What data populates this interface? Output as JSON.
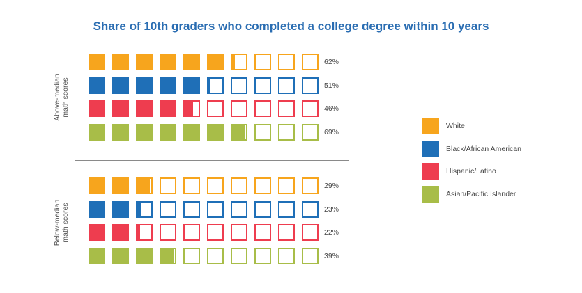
{
  "title": "Share of 10th graders who completed a college degree within 10 years",
  "colors": {
    "White": "#f7a51d",
    "Black/African American": "#1f6fb7",
    "Hispanic/Latino": "#ee3d4f",
    "Asian/Pacific Islander": "#a8bd48"
  },
  "chart_data": {
    "type": "icon-array",
    "title": "Share of 10th graders who completed a college degree within 10 years",
    "units_per_row": 10,
    "groups": [
      {
        "label": "Above-median math scores",
        "label_lines": [
          "Above-median",
          "math scores"
        ],
        "series": [
          {
            "name": "White",
            "value": 62,
            "label": "62%"
          },
          {
            "name": "Black/African American",
            "value": 51,
            "label": "51%"
          },
          {
            "name": "Hispanic/Latino",
            "value": 46,
            "label": "46%"
          },
          {
            "name": "Asian/Pacific Islander",
            "value": 69,
            "label": "69%"
          }
        ]
      },
      {
        "label": "Below-median math scores",
        "label_lines": [
          "Below-median",
          "math scores"
        ],
        "series": [
          {
            "name": "White",
            "value": 29,
            "label": "29%"
          },
          {
            "name": "Black/African American",
            "value": 23,
            "label": "23%"
          },
          {
            "name": "Hispanic/Latino",
            "value": 22,
            "label": "22%"
          },
          {
            "name": "Asian/Pacific Islander",
            "value": 39,
            "label": "39%"
          }
        ]
      }
    ],
    "legend": [
      "White",
      "Black/African American",
      "Hispanic/Latino",
      "Asian/Pacific Islander"
    ],
    "legend_position": "right"
  }
}
